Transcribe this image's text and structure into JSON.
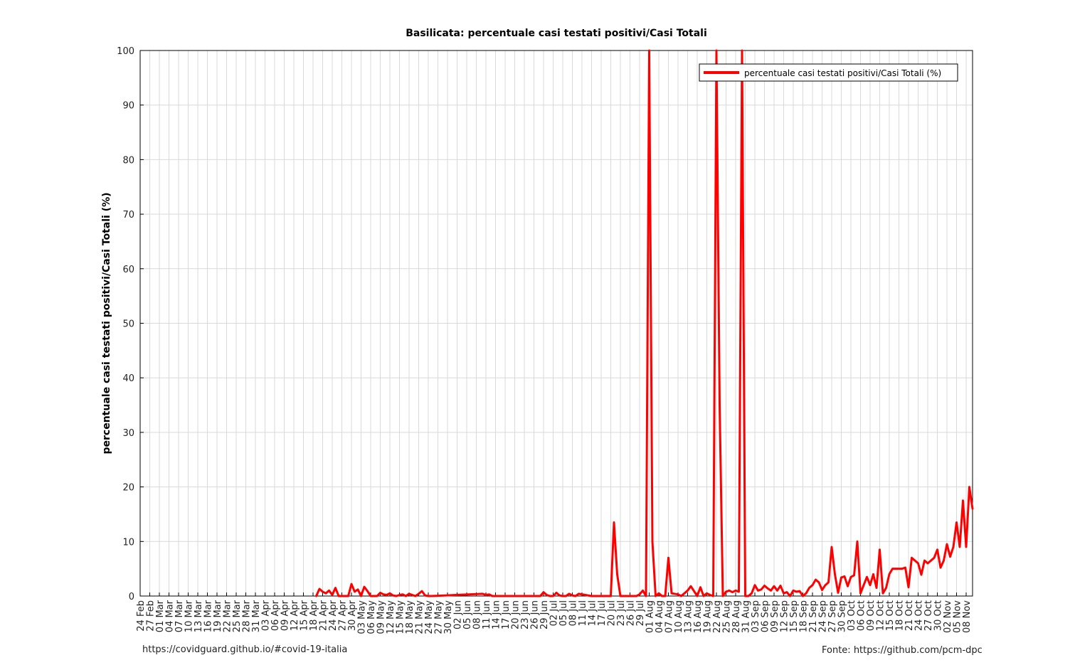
{
  "footer": {
    "left": "https://covidguard.github.io/#covid-19-italia",
    "right": "Fonte: https://github.com/pcm-dpc"
  },
  "chart_data": {
    "type": "line",
    "title": "Basilicata: percentuale casi testati positivi/Casi Totali",
    "ylabel": "percentuale casi testati positivi/Casi Totali (%)",
    "xlabel": "",
    "ylim": [
      0,
      100
    ],
    "yticks": [
      0,
      10,
      20,
      30,
      40,
      50,
      60,
      70,
      80,
      90,
      100
    ],
    "grid": true,
    "legend_position": "top-right",
    "x_start": "2020-02-24",
    "x_end": "2020-11-10",
    "xtick_labels": [
      "24 Feb",
      "27 Feb",
      "01 Mar",
      "04 Mar",
      "07 Mar",
      "10 Mar",
      "13 Mar",
      "16 Mar",
      "19 Mar",
      "22 Mar",
      "25 Mar",
      "28 Mar",
      "31 Mar",
      "03 Apr",
      "06 Apr",
      "09 Apr",
      "12 Apr",
      "15 Apr",
      "18 Apr",
      "21 Apr",
      "24 Apr",
      "27 Apr",
      "30 Apr",
      "03 May",
      "06 May",
      "09 May",
      "12 May",
      "15 May",
      "18 May",
      "21 May",
      "24 May",
      "27 May",
      "30 May",
      "02 Jun",
      "05 Jun",
      "08 Jun",
      "11 Jun",
      "14 Jun",
      "17 Jun",
      "20 Jun",
      "23 Jun",
      "26 Jun",
      "29 Jun",
      "02 Jul",
      "05 Jul",
      "08 Jul",
      "11 Jul",
      "14 Jul",
      "17 Jul",
      "20 Jul",
      "23 Jul",
      "26 Jul",
      "29 Jul",
      "01 Aug",
      "04 Aug",
      "07 Aug",
      "10 Aug",
      "13 Aug",
      "16 Aug",
      "19 Aug",
      "22 Aug",
      "25 Aug",
      "28 Aug",
      "31 Aug",
      "03 Sep",
      "06 Sep",
      "09 Sep",
      "12 Sep",
      "15 Sep",
      "18 Sep",
      "21 Sep",
      "24 Sep",
      "27 Sep",
      "30 Sep",
      "03 Oct",
      "06 Oct",
      "09 Oct",
      "12 Oct",
      "15 Oct",
      "18 Oct",
      "21 Oct",
      "24 Oct",
      "27 Oct",
      "30 Oct",
      "02 Nov",
      "05 Nov",
      "08 Nov"
    ],
    "series": [
      {
        "name": "percentuale casi testati positivi/Casi Totali (%)",
        "color": "#ff0000",
        "x": [
          "2020-04-19",
          "2020-04-20",
          "2020-04-21",
          "2020-04-22",
          "2020-04-23",
          "2020-04-24",
          "2020-04-25",
          "2020-04-26",
          "2020-04-27",
          "2020-04-28",
          "2020-04-29",
          "2020-04-30",
          "2020-05-01",
          "2020-05-02",
          "2020-05-03",
          "2020-05-04",
          "2020-05-05",
          "2020-05-06",
          "2020-05-07",
          "2020-05-08",
          "2020-05-09",
          "2020-05-10",
          "2020-05-11",
          "2020-05-12",
          "2020-05-13",
          "2020-05-14",
          "2020-05-15",
          "2020-05-16",
          "2020-05-17",
          "2020-05-18",
          "2020-05-19",
          "2020-05-20",
          "2020-05-21",
          "2020-05-22",
          "2020-05-23",
          "2020-05-24",
          "2020-05-25",
          "2020-06-10",
          "2020-06-11",
          "2020-06-12",
          "2020-06-13",
          "2020-06-14",
          "2020-06-27",
          "2020-06-28",
          "2020-06-29",
          "2020-06-30",
          "2020-07-01",
          "2020-07-02",
          "2020-07-03",
          "2020-07-04",
          "2020-07-05",
          "2020-07-06",
          "2020-07-07",
          "2020-07-08",
          "2020-07-09",
          "2020-07-10",
          "2020-07-14",
          "2020-07-17",
          "2020-07-20",
          "2020-07-21",
          "2020-07-22",
          "2020-07-23",
          "2020-07-24",
          "2020-07-25",
          "2020-07-28",
          "2020-07-29",
          "2020-07-30",
          "2020-07-31",
          "2020-08-01",
          "2020-08-02",
          "2020-08-03",
          "2020-08-04",
          "2020-08-05",
          "2020-08-06",
          "2020-08-07",
          "2020-08-08",
          "2020-08-10",
          "2020-08-11",
          "2020-08-12",
          "2020-08-13",
          "2020-08-14",
          "2020-08-16",
          "2020-08-17",
          "2020-08-18",
          "2020-08-19",
          "2020-08-20",
          "2020-08-21",
          "2020-08-22",
          "2020-08-23",
          "2020-08-24",
          "2020-08-25",
          "2020-08-26",
          "2020-08-27",
          "2020-08-28",
          "2020-08-29",
          "2020-08-30",
          "2020-08-31",
          "2020-09-01",
          "2020-09-02",
          "2020-09-03",
          "2020-09-04",
          "2020-09-05",
          "2020-09-06",
          "2020-09-07",
          "2020-09-08",
          "2020-09-09",
          "2020-09-10",
          "2020-09-11",
          "2020-09-12",
          "2020-09-13",
          "2020-09-14",
          "2020-09-15",
          "2020-09-16",
          "2020-09-17",
          "2020-09-18",
          "2020-09-19",
          "2020-09-20",
          "2020-09-21",
          "2020-09-22",
          "2020-09-23",
          "2020-09-24",
          "2020-09-25",
          "2020-09-26",
          "2020-09-27",
          "2020-09-28",
          "2020-09-29",
          "2020-09-30",
          "2020-10-01",
          "2020-10-02",
          "2020-10-03",
          "2020-10-04",
          "2020-10-05",
          "2020-10-06",
          "2020-10-07",
          "2020-10-08",
          "2020-10-09",
          "2020-10-10",
          "2020-10-11",
          "2020-10-12",
          "2020-10-13",
          "2020-10-14",
          "2020-10-15",
          "2020-10-16",
          "2020-10-17",
          "2020-10-18",
          "2020-10-19",
          "2020-10-20",
          "2020-10-21",
          "2020-10-22",
          "2020-10-23",
          "2020-10-24",
          "2020-10-25",
          "2020-10-26",
          "2020-10-27",
          "2020-10-28",
          "2020-10-29",
          "2020-10-30",
          "2020-10-31",
          "2020-11-01",
          "2020-11-02",
          "2020-11-03",
          "2020-11-04",
          "2020-11-05",
          "2020-11-06",
          "2020-11-07",
          "2020-11-08",
          "2020-11-09",
          "2020-11-10"
        ],
        "y": [
          0,
          1.3,
          0.8,
          0.5,
          1.0,
          0.2,
          1.5,
          0,
          0,
          0,
          0,
          2.2,
          0.8,
          1.2,
          0,
          1.7,
          0.9,
          0,
          0,
          0,
          0.6,
          0.3,
          0.2,
          0.5,
          0.1,
          0,
          0.2,
          0.3,
          0,
          0.4,
          0.2,
          0,
          0.4,
          0.9,
          0.1,
          0,
          0,
          0.4,
          0.2,
          0.3,
          0,
          0,
          0,
          0,
          0.7,
          0.2,
          0,
          0,
          0.6,
          0.1,
          0,
          0,
          0.4,
          0.1,
          0,
          0.4,
          0,
          0,
          0,
          13.5,
          4,
          0,
          0,
          0,
          0,
          0.3,
          1,
          0,
          100,
          10,
          0,
          0.5,
          0,
          0,
          7,
          0.5,
          0.3,
          0,
          0.5,
          1,
          1.8,
          0,
          1.6,
          0,
          0.5,
          0.2,
          0,
          100,
          35,
          0,
          0.8,
          1.0,
          0.7,
          1.0,
          0.8,
          100,
          0,
          0,
          0.5,
          2.0,
          1.0,
          1.2,
          1.9,
          1.4,
          1.0,
          1.8,
          1.0,
          1.9,
          0.5,
          0.7,
          0,
          1.0,
          0.8,
          0.9,
          0,
          0.5,
          1.5,
          2,
          3,
          2.5,
          1.1,
          2,
          2.5,
          9,
          4,
          0.6,
          3.4,
          3.6,
          1.8,
          3.5,
          3.8,
          10,
          0.5,
          2,
          3.5,
          2,
          4,
          1.5,
          8.5,
          0.5,
          1.5,
          4,
          5,
          5,
          5,
          5,
          5.2,
          1.6,
          7,
          6.5,
          6,
          3.9,
          6.5,
          6,
          6.5,
          7,
          8.5,
          5.2,
          6.5,
          9.5,
          7.2,
          9,
          13.5,
          9,
          17.5,
          9,
          20,
          16
        ]
      }
    ]
  }
}
